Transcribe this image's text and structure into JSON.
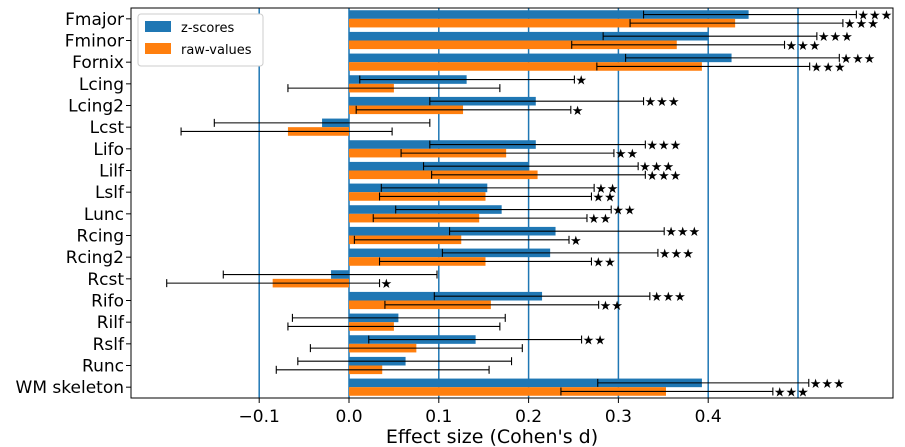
{
  "chart_data": {
    "type": "bar",
    "orientation": "horizontal",
    "categories": [
      "Fmajor",
      "Fminor",
      "Fornix",
      "Lcing",
      "Lcing2",
      "Lcst",
      "Lifo",
      "Lilf",
      "Lslf",
      "Lunc",
      "Rcing",
      "Rcing2",
      "Rcst",
      "Rifo",
      "Rilf",
      "Rslf",
      "Runc",
      "WM skeleton"
    ],
    "series": [
      {
        "name": "z-scores",
        "color": "#1f77b4",
        "values": [
          0.445,
          0.4,
          0.426,
          0.131,
          0.208,
          -0.03,
          0.208,
          0.2,
          0.154,
          0.17,
          0.23,
          0.224,
          -0.02,
          0.215,
          0.055,
          0.141,
          0.063,
          0.393
        ],
        "ci_low": [
          0.328,
          0.283,
          0.308,
          0.012,
          0.09,
          -0.15,
          0.09,
          0.083,
          0.036,
          0.052,
          0.112,
          0.104,
          -0.14,
          0.095,
          -0.063,
          0.022,
          -0.057,
          0.277
        ],
        "ci_high": [
          0.565,
          0.521,
          0.546,
          0.251,
          0.328,
          0.09,
          0.33,
          0.322,
          0.273,
          0.292,
          0.351,
          0.344,
          0.098,
          0.335,
          0.174,
          0.259,
          0.181,
          0.512
        ],
        "stars": [
          "★★★",
          "★★★",
          "★★★",
          "★",
          "★★★",
          "",
          "★★★",
          "★★★",
          "★★",
          "★★",
          "★★★",
          "★★★",
          "",
          "★★★",
          "",
          "★★",
          "",
          "★★★"
        ]
      },
      {
        "name": "raw-values",
        "color": "#ff7f0e",
        "values": [
          0.43,
          0.365,
          0.393,
          0.05,
          0.127,
          -0.068,
          0.175,
          0.21,
          0.152,
          0.145,
          0.125,
          0.152,
          -0.085,
          0.158,
          0.05,
          0.075,
          0.037,
          0.353
        ],
        "ci_low": [
          0.313,
          0.248,
          0.276,
          -0.068,
          0.008,
          -0.187,
          0.058,
          0.092,
          0.034,
          0.027,
          0.006,
          0.034,
          -0.203,
          0.04,
          -0.068,
          -0.043,
          -0.081,
          0.236
        ],
        "ci_high": [
          0.55,
          0.485,
          0.513,
          0.168,
          0.247,
          0.048,
          0.295,
          0.33,
          0.27,
          0.265,
          0.245,
          0.27,
          0.034,
          0.278,
          0.168,
          0.193,
          0.156,
          0.472
        ],
        "stars": [
          "★★★",
          "★★★",
          "★★★",
          "",
          "★",
          "",
          "★★",
          "★★★",
          "★★",
          "★★",
          "★",
          "★★",
          "★",
          "★★",
          "",
          "",
          "",
          "★★★"
        ]
      }
    ],
    "xlabel": "Effect size (Cohen's d)",
    "ylabel": "",
    "xlim": [
      -0.135,
      0.455
    ],
    "xticks": [
      -0.1,
      0.0,
      0.1,
      0.2,
      0.3,
      0.4
    ],
    "xtick_labels": [
      "−0.1",
      "0.0",
      "0.1",
      "0.2",
      "0.3",
      "0.4"
    ],
    "vlines": [
      -0.1,
      0.0,
      0.1,
      0.2,
      0.3,
      0.4,
      0.5
    ],
    "vline_color": "#1f77b4",
    "legend": {
      "position": "top-left",
      "entries": [
        "z-scores",
        "raw-values"
      ]
    },
    "grid": false
  }
}
